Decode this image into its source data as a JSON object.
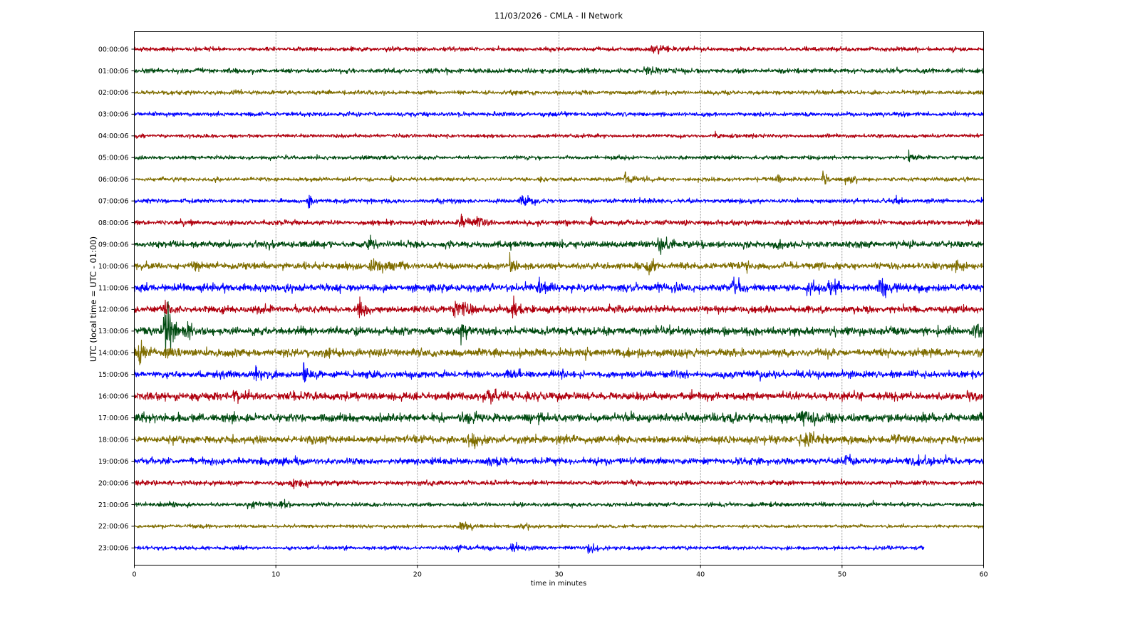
{
  "chart_data": {
    "type": "line",
    "title": "11/03/2026 - CMLA - II Network",
    "xlabel": "time in minutes",
    "ylabel": "UTC (local time = UTC - 01:00)",
    "xlim": [
      0,
      60
    ],
    "xticks": [
      0,
      10,
      20,
      30,
      40,
      50,
      60
    ],
    "grid": "vertical dashed at x ticks",
    "legend": "none",
    "colors": [
      "#b0000e",
      "#004a10",
      "#7f6d00",
      "#0000ff"
    ],
    "series": [
      {
        "label": "00:00:06",
        "color": "#b0000e",
        "end_minute": 60,
        "noise_level": 0.9,
        "events": [
          [
            36.5,
            1.6,
            1.0
          ]
        ]
      },
      {
        "label": "01:00:06",
        "color": "#004a10",
        "end_minute": 60,
        "noise_level": 1.0,
        "events": [
          [
            36.0,
            1.5,
            1.0
          ]
        ]
      },
      {
        "label": "02:00:06",
        "color": "#7f6d00",
        "end_minute": 60,
        "noise_level": 0.9,
        "events": []
      },
      {
        "label": "03:00:06",
        "color": "#0000ff",
        "end_minute": 60,
        "noise_level": 0.9,
        "events": []
      },
      {
        "label": "04:00:06",
        "color": "#b0000e",
        "end_minute": 60,
        "noise_level": 0.8,
        "events": [
          [
            41.0,
            1.8,
            0.3
          ]
        ]
      },
      {
        "label": "05:00:06",
        "color": "#004a10",
        "end_minute": 60,
        "noise_level": 0.8,
        "events": [
          [
            54.7,
            2.2,
            0.3
          ]
        ]
      },
      {
        "label": "06:00:06",
        "color": "#7f6d00",
        "end_minute": 60,
        "noise_level": 0.8,
        "events": [
          [
            18.1,
            1.8,
            0.3
          ],
          [
            28.5,
            1.8,
            0.3
          ],
          [
            34.6,
            2.2,
            1.0
          ],
          [
            45.4,
            2.5,
            0.4
          ],
          [
            48.6,
            4.0,
            0.3
          ],
          [
            50.2,
            1.6,
            0.4
          ]
        ]
      },
      {
        "label": "07:00:06",
        "color": "#0000ff",
        "end_minute": 60,
        "noise_level": 0.9,
        "events": [
          [
            12.2,
            4.5,
            0.3
          ],
          [
            16.5,
            2.0,
            0.3
          ],
          [
            27.2,
            3.4,
            0.6
          ],
          [
            53.8,
            1.7,
            0.3
          ]
        ]
      },
      {
        "label": "08:00:06",
        "color": "#b0000e",
        "end_minute": 60,
        "noise_level": 1.1,
        "events": [
          [
            23.0,
            2.5,
            0.6
          ],
          [
            24.2,
            2.2,
            0.6
          ],
          [
            32.2,
            1.6,
            0.4
          ]
        ]
      },
      {
        "label": "09:00:06",
        "color": "#004a10",
        "end_minute": 60,
        "noise_level": 1.4,
        "events": [
          [
            16.5,
            3.0,
            0.4
          ],
          [
            37.0,
            3.2,
            1.0
          ],
          [
            45.3,
            2.8,
            0.3
          ]
        ]
      },
      {
        "label": "10:00:06",
        "color": "#7f6d00",
        "end_minute": 60,
        "noise_level": 1.4,
        "events": [
          [
            4.2,
            2.0,
            0.4
          ],
          [
            16.6,
            2.5,
            1.2
          ],
          [
            26.5,
            2.7,
            0.5
          ],
          [
            36.2,
            3.5,
            0.5
          ],
          [
            48.2,
            3.0,
            0.3
          ],
          [
            58.0,
            3.2,
            0.4
          ]
        ]
      },
      {
        "label": "11:00:06",
        "color": "#0000ff",
        "end_minute": 60,
        "noise_level": 1.6,
        "events": [
          [
            28.5,
            3.5,
            0.4
          ],
          [
            42.2,
            2.6,
            0.5
          ],
          [
            47.5,
            3.0,
            0.5
          ],
          [
            49.0,
            2.4,
            0.7
          ],
          [
            52.5,
            2.4,
            1.2
          ]
        ]
      },
      {
        "label": "12:00:06",
        "color": "#b0000e",
        "end_minute": 60,
        "noise_level": 1.5,
        "events": [
          [
            2.1,
            4.0,
            0.3
          ],
          [
            15.8,
            2.2,
            0.5
          ],
          [
            22.5,
            2.8,
            1.4
          ],
          [
            26.7,
            3.2,
            0.5
          ]
        ]
      },
      {
        "label": "13:00:06",
        "color": "#004a10",
        "end_minute": 60,
        "noise_level": 1.7,
        "events": [
          [
            2.1,
            14.0,
            0.4
          ],
          [
            2.3,
            6.0,
            0.6
          ],
          [
            3.8,
            3.0,
            0.3
          ],
          [
            23.0,
            3.2,
            0.6
          ],
          [
            41.6,
            2.5,
            0.3
          ],
          [
            59.2,
            2.6,
            1.0
          ]
        ]
      },
      {
        "label": "14:00:06",
        "color": "#7f6d00",
        "end_minute": 60,
        "noise_level": 1.7,
        "events": [
          [
            0.3,
            4.0,
            0.5
          ],
          [
            2.1,
            4.5,
            0.3
          ]
        ]
      },
      {
        "label": "15:00:06",
        "color": "#0000ff",
        "end_minute": 60,
        "noise_level": 1.5,
        "events": [
          [
            8.4,
            3.2,
            0.4
          ],
          [
            11.9,
            4.5,
            0.3
          ],
          [
            26.3,
            2.2,
            0.4
          ]
        ]
      },
      {
        "label": "16:00:06",
        "color": "#b0000e",
        "end_minute": 60,
        "noise_level": 1.7,
        "events": [
          [
            7.0,
            2.2,
            0.6
          ],
          [
            24.6,
            2.6,
            1.0
          ],
          [
            58.8,
            2.2,
            0.5
          ]
        ]
      },
      {
        "label": "17:00:06",
        "color": "#004a10",
        "end_minute": 60,
        "noise_level": 1.8,
        "events": [
          [
            23.0,
            2.4,
            0.5
          ],
          [
            47.0,
            2.4,
            1.2
          ]
        ]
      },
      {
        "label": "18:00:06",
        "color": "#7f6d00",
        "end_minute": 60,
        "noise_level": 1.6,
        "events": [
          [
            23.5,
            2.4,
            0.8
          ],
          [
            47.0,
            2.6,
            1.2
          ],
          [
            53.8,
            3.6,
            0.3
          ]
        ]
      },
      {
        "label": "19:00:06",
        "color": "#0000ff",
        "end_minute": 60,
        "noise_level": 1.4,
        "events": [
          [
            10.0,
            1.6,
            1.0
          ],
          [
            25.0,
            2.0,
            0.6
          ],
          [
            50.2,
            2.0,
            0.5
          ],
          [
            55.0,
            2.0,
            0.8
          ]
        ]
      },
      {
        "label": "20:00:06",
        "color": "#b0000e",
        "end_minute": 60,
        "noise_level": 1.0,
        "events": [
          [
            11.0,
            1.6,
            1.0
          ]
        ]
      },
      {
        "label": "21:00:06",
        "color": "#004a10",
        "end_minute": 60,
        "noise_level": 0.9,
        "events": [
          [
            8.0,
            1.6,
            0.8
          ],
          [
            10.3,
            2.0,
            0.5
          ]
        ]
      },
      {
        "label": "22:00:06",
        "color": "#7f6d00",
        "end_minute": 60,
        "noise_level": 0.7,
        "events": [
          [
            23.0,
            1.6,
            1.2
          ],
          [
            27.3,
            1.6,
            0.5
          ]
        ]
      },
      {
        "label": "23:00:06",
        "color": "#0000ff",
        "end_minute": 55.8,
        "noise_level": 0.8,
        "events": [
          [
            22.8,
            1.5,
            1.2
          ],
          [
            26.5,
            1.8,
            1.0
          ],
          [
            32.0,
            1.4,
            0.8
          ]
        ]
      }
    ]
  }
}
